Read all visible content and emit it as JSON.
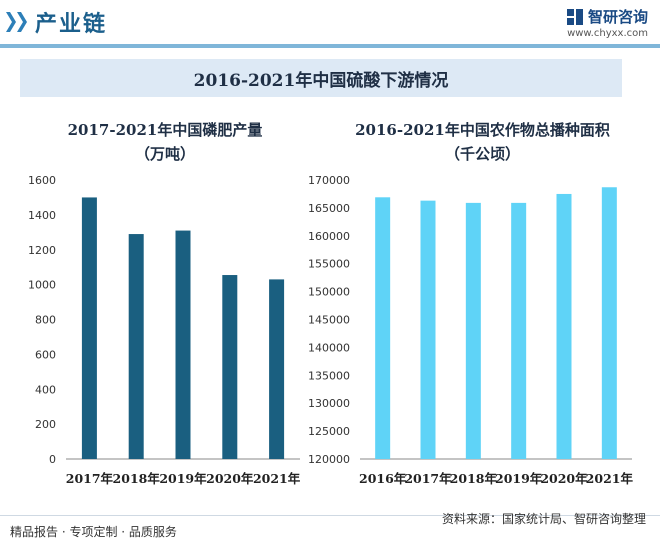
{
  "header": {
    "title": "产业链"
  },
  "logo": {
    "name": "智研咨询",
    "url": "www.chyxx.com"
  },
  "main_title": "2016-2021年中国硫酸下游情况",
  "colors": {
    "chart1_bar": "#1a5f80",
    "chart2_bar": "#5fd3f7",
    "header_bar": "#7fb6d9"
  },
  "chart_data": [
    {
      "type": "bar",
      "title": "2017-2021年中国磷肥产量",
      "subtitle": "（万吨）",
      "categories": [
        "2017年",
        "2018年",
        "2019年",
        "2020年",
        "2021年"
      ],
      "values": [
        1500,
        1290,
        1310,
        1055,
        1030
      ],
      "yticks": [
        0,
        200,
        400,
        600,
        800,
        1000,
        1200,
        1400,
        1600
      ],
      "ylim": [
        0,
        1600
      ],
      "grid": false
    },
    {
      "type": "bar",
      "title": "2016-2021年中国农作物总播种面积",
      "subtitle": "（千公顷）",
      "categories": [
        "2016年",
        "2017年",
        "2018年",
        "2019年",
        "2020年",
        "2021年"
      ],
      "values": [
        166900,
        166300,
        165900,
        165900,
        167500,
        168700
      ],
      "yticks": [
        120000,
        125000,
        130000,
        135000,
        140000,
        145000,
        150000,
        155000,
        160000,
        165000,
        170000
      ],
      "ylim": [
        120000,
        170000
      ],
      "grid": false
    }
  ],
  "footer": {
    "left": "精品报告 · 专项定制 · 品质服务",
    "source": "资料来源：国家统计局、智研咨询整理"
  }
}
